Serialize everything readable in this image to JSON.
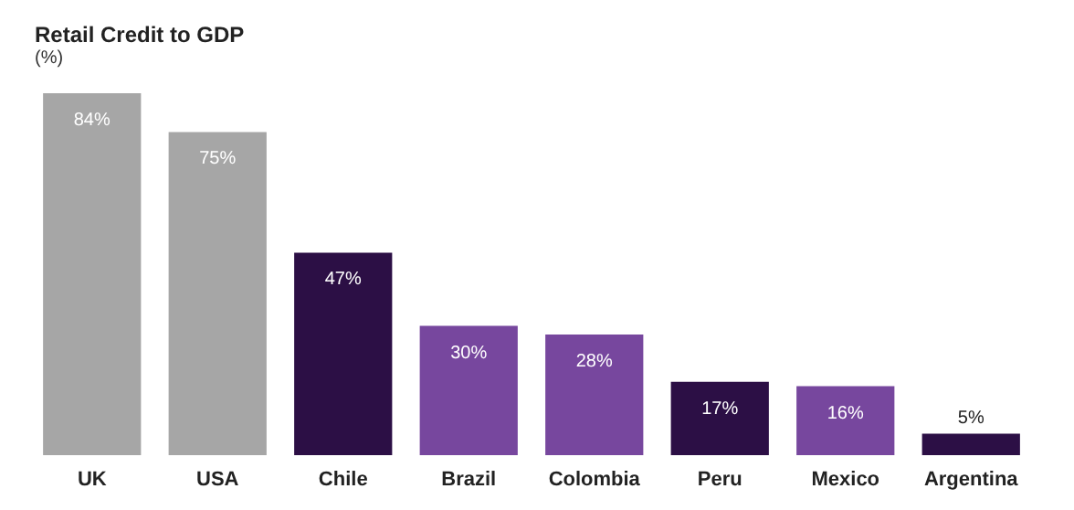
{
  "chart_data": {
    "type": "bar",
    "title": "Retail Credit to GDP",
    "subtitle": "(%)",
    "categories": [
      "UK",
      "USA",
      "Chile",
      "Brazil",
      "Colombia",
      "Peru",
      "Mexico",
      "Argentina"
    ],
    "values": [
      84,
      75,
      47,
      30,
      28,
      17,
      16,
      5
    ],
    "colors": [
      "#a6a6a6",
      "#a6a6a6",
      "#2c0f45",
      "#77479e",
      "#77479e",
      "#2c0f45",
      "#77479e",
      "#2c0f45"
    ],
    "value_labels": [
      "84%",
      "75%",
      "47%",
      "30%",
      "28%",
      "17%",
      "16%",
      "5%"
    ]
  }
}
